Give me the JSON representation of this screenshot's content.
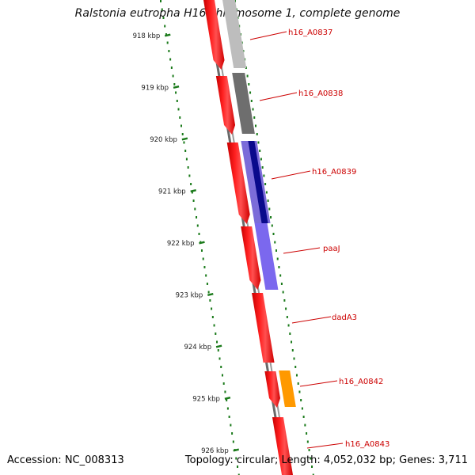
{
  "title": "Ralstonia eutropha H16 chromosome 1, complete genome",
  "footer": {
    "accession": "Accession: NC_008313",
    "info": "Topology: circular; Length: 4,052,032 bp; Genes: 3,711"
  },
  "ticks": [
    {
      "label": "918 kbp"
    },
    {
      "label": "919 kbp"
    },
    {
      "label": "920 kbp"
    },
    {
      "label": "921 kbp"
    },
    {
      "label": "922 kbp"
    },
    {
      "label": "923 kbp"
    },
    {
      "label": "924 kbp"
    },
    {
      "label": "925 kbp"
    },
    {
      "label": "926 kbp"
    }
  ],
  "genes": [
    {
      "label": "h16_A0837",
      "color": "#bdbdbd"
    },
    {
      "label": "h16_A0838",
      "color": "#6e6e6e"
    },
    {
      "label": "h16_A0839",
      "color": "#0a0a8c"
    },
    {
      "label": "paaJ",
      "color": "#7b68ee"
    },
    {
      "label": "dadA3",
      "color": ""
    },
    {
      "label": "h16_A0842",
      "color": "#ff9900"
    },
    {
      "label": "h16_A0843",
      "color": ""
    }
  ],
  "colors": {
    "cds": "#ff0000",
    "backbone": "#777777",
    "ticks": "#1a7a1a",
    "labels": "#cc0000"
  }
}
